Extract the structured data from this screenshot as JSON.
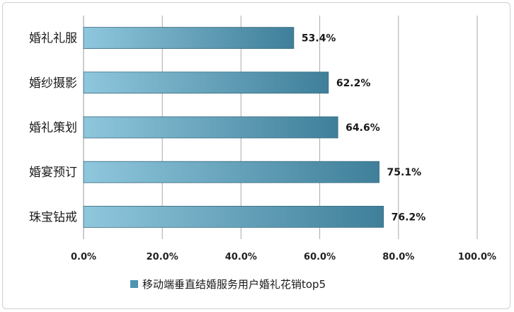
{
  "chart_data": {
    "type": "bar",
    "orientation": "horizontal",
    "categories": [
      "婚礼礼服",
      "婚纱摄影",
      "婚礼策划",
      "婚宴预订",
      "珠宝钻戒"
    ],
    "series": [
      {
        "name": "移动端垂直结婚服务用户婚礼花销top5",
        "values": [
          53.4,
          62.2,
          64.6,
          75.1,
          76.2
        ],
        "value_labels": [
          "53.4%",
          "62.2%",
          "64.6%",
          "75.1%",
          "76.2%"
        ]
      }
    ],
    "title": "",
    "xlabel": "",
    "ylabel": "",
    "xlim": [
      0,
      100
    ],
    "x_ticks": [
      0,
      20,
      40,
      60,
      80,
      100
    ],
    "x_tick_labels": [
      "0.0%",
      "20.0%",
      "40.0%",
      "60.0%",
      "80.0%",
      "100.0%"
    ],
    "grid": "vertical",
    "legend": "bottom",
    "colors": {
      "bar_light": "#8fc7dd",
      "bar_dark": "#3f7f99",
      "bar_edge": "#35697f",
      "grid": "#a9a9a9",
      "axis": "#9a9a9a",
      "legend_swatch": "#4f93b0"
    }
  }
}
